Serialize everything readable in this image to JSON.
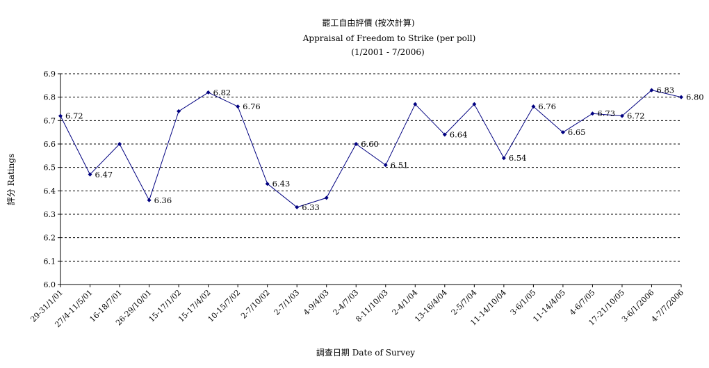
{
  "chart_data": {
    "type": "line",
    "title": "罷工自由評價 (按次計算)",
    "subtitle": "Appraisal of Freedom to Strike (per poll)",
    "subtitle2": "(1/2001 - 7/2006)",
    "xlabel": "調查日期 Date of Survey",
    "ylabel": "評分 Ratings",
    "ylim": [
      6.0,
      6.9
    ],
    "yticks": [
      "6.0",
      "6.1",
      "6.2",
      "6.3",
      "6.4",
      "6.5",
      "6.6",
      "6.7",
      "6.8",
      "6.9"
    ],
    "grid": true,
    "legend": "none",
    "line_color": "#000080",
    "categories": [
      "29-31/1/01",
      "27/4-11/5/01",
      "16-18/7/01",
      "26-29/10/01",
      "15-17/1/02",
      "15-17/4/02",
      "10-15/7/02",
      "2-7/10/02",
      "2-7/1/03",
      "4-9/4/03",
      "2-4/7/03",
      "8-11/10/03",
      "2-4/1/04",
      "13-16/4/04",
      "2-5/7/04",
      "11-14/10/04",
      "3-6/1/05",
      "11-14/4/05",
      "4-6/7/05",
      "17-21/10/05",
      "3-6/1/2006",
      "4-7/7/2006"
    ],
    "x_tick_labels": [
      "29-31/1/01",
      "27/4-11/5/01",
      "16-18/7/01",
      "26-29/10/01",
      "15-17/1/02",
      "15-17/4/02",
      "10-15/7/02",
      "2-7/10/02",
      "2-7/1/03",
      "4-9/4/03",
      "2-4/7/03",
      "8-11/10/03",
      "2-4/1/04",
      "13-16/4/04",
      "2-5/7/04",
      "11-14/10/04",
      "3-6/1/05",
      "11-14/4/05",
      "4-6/7/05",
      "17-21/10/05",
      "3-6/1/2006",
      "4-7/7/2006"
    ],
    "values": [
      6.72,
      6.47,
      6.6,
      6.36,
      6.74,
      6.82,
      6.76,
      6.43,
      6.33,
      6.37,
      6.6,
      6.51,
      6.77,
      6.64,
      6.77,
      6.54,
      6.76,
      6.65,
      6.73,
      6.72,
      6.83,
      6.8
    ],
    "data_labels": [
      "6.72",
      "6.47",
      "",
      "6.36",
      "",
      "6.82",
      "6.76",
      "6.43",
      "6.33",
      "",
      "6.60",
      "6.51",
      "",
      "6.64",
      "",
      "6.54",
      "6.76",
      "6.65",
      "6.73",
      "6.72",
      "6.83",
      "6.80"
    ]
  }
}
